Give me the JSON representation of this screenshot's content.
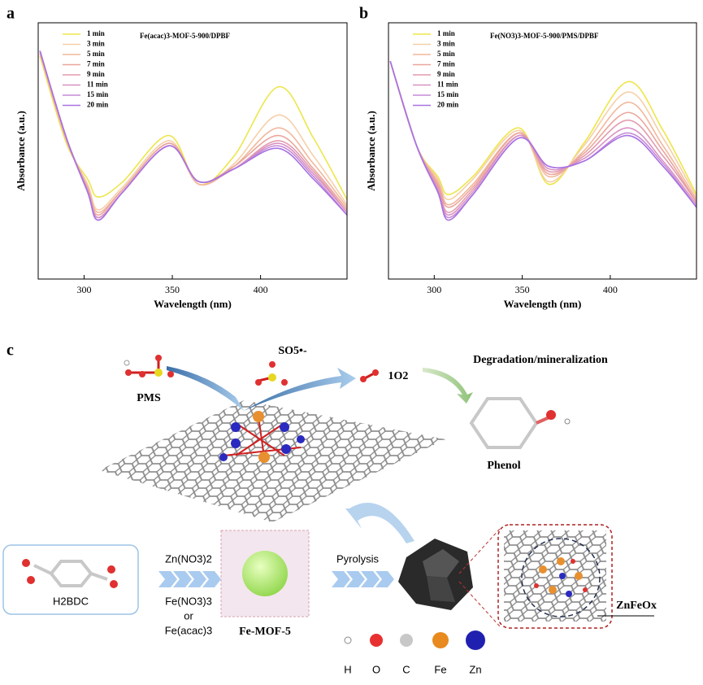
{
  "chart_data": [
    {
      "type": "line",
      "title": "Fe(acac)3-MOF-5-900/DPBF",
      "xlabel": "Wavelength (nm)",
      "ylabel": "Absorbance (a.u.)",
      "x": [
        275,
        290,
        302,
        308,
        322,
        348,
        365,
        385,
        410,
        430,
        449
      ],
      "xlim": [
        274,
        449
      ],
      "xticks": [
        300,
        350,
        400
      ],
      "ylim": [
        0,
        1
      ],
      "series": [
        {
          "name": "1 min",
          "color": "#ece64a",
          "values": [
            0.87,
            0.53,
            0.39,
            0.32,
            0.38,
            0.56,
            0.37,
            0.48,
            0.75,
            0.55,
            0.31
          ]
        },
        {
          "name": "3 min",
          "color": "#f6cfa8",
          "values": [
            0.88,
            0.54,
            0.37,
            0.27,
            0.36,
            0.54,
            0.37,
            0.45,
            0.64,
            0.48,
            0.29
          ]
        },
        {
          "name": "5 min",
          "color": "#f2b79c",
          "values": [
            0.88,
            0.54,
            0.36,
            0.26,
            0.35,
            0.53,
            0.37,
            0.44,
            0.59,
            0.45,
            0.28
          ]
        },
        {
          "name": "7 min",
          "color": "#eba69c",
          "values": [
            0.89,
            0.55,
            0.35,
            0.25,
            0.35,
            0.53,
            0.38,
            0.44,
            0.56,
            0.43,
            0.27
          ]
        },
        {
          "name": "9 min",
          "color": "#e39cae",
          "values": [
            0.89,
            0.55,
            0.35,
            0.24,
            0.34,
            0.52,
            0.38,
            0.43,
            0.54,
            0.42,
            0.26
          ]
        },
        {
          "name": "11 min",
          "color": "#d892c2",
          "values": [
            0.89,
            0.55,
            0.34,
            0.24,
            0.34,
            0.52,
            0.38,
            0.43,
            0.53,
            0.41,
            0.26
          ]
        },
        {
          "name": "15 min",
          "color": "#c68bd8",
          "values": [
            0.89,
            0.55,
            0.34,
            0.23,
            0.34,
            0.52,
            0.38,
            0.43,
            0.52,
            0.4,
            0.25
          ]
        },
        {
          "name": "20 min",
          "color": "#a872e2",
          "values": [
            0.89,
            0.55,
            0.34,
            0.23,
            0.34,
            0.52,
            0.38,
            0.43,
            0.51,
            0.39,
            0.25
          ]
        }
      ]
    },
    {
      "type": "line",
      "title": "Fe(NO3)3-MOF-5-900/PMS/DPBF",
      "xlabel": "Wavelength (nm)",
      "ylabel": "Absorbance (a.u.)",
      "x": [
        275,
        290,
        302,
        308,
        322,
        348,
        365,
        385,
        410,
        430,
        449
      ],
      "xlim": [
        274,
        449
      ],
      "xticks": [
        300,
        350,
        400
      ],
      "ylim": [
        0,
        1
      ],
      "series": [
        {
          "name": "1 min",
          "color": "#ece64a",
          "values": [
            0.85,
            0.52,
            0.4,
            0.33,
            0.4,
            0.59,
            0.37,
            0.53,
            0.77,
            0.58,
            0.33
          ]
        },
        {
          "name": "3 min",
          "color": "#f6cfa8",
          "values": [
            0.85,
            0.52,
            0.39,
            0.31,
            0.39,
            0.58,
            0.38,
            0.52,
            0.73,
            0.55,
            0.32
          ]
        },
        {
          "name": "5 min",
          "color": "#f2b79c",
          "values": [
            0.85,
            0.52,
            0.38,
            0.29,
            0.37,
            0.57,
            0.4,
            0.5,
            0.69,
            0.52,
            0.31
          ]
        },
        {
          "name": "7 min",
          "color": "#eba69c",
          "values": [
            0.85,
            0.52,
            0.37,
            0.28,
            0.36,
            0.57,
            0.41,
            0.49,
            0.65,
            0.5,
            0.3
          ]
        },
        {
          "name": "9 min",
          "color": "#e39cae",
          "values": [
            0.85,
            0.52,
            0.36,
            0.26,
            0.35,
            0.56,
            0.42,
            0.48,
            0.62,
            0.48,
            0.3
          ]
        },
        {
          "name": "11 min",
          "color": "#d892c2",
          "values": [
            0.85,
            0.52,
            0.35,
            0.25,
            0.34,
            0.56,
            0.43,
            0.47,
            0.59,
            0.46,
            0.29
          ]
        },
        {
          "name": "15 min",
          "color": "#c68bd8",
          "values": [
            0.85,
            0.52,
            0.34,
            0.24,
            0.33,
            0.55,
            0.44,
            0.46,
            0.57,
            0.45,
            0.28
          ]
        },
        {
          "name": "20 min",
          "color": "#a872e2",
          "values": [
            0.85,
            0.52,
            0.34,
            0.23,
            0.33,
            0.55,
            0.44,
            0.46,
            0.56,
            0.44,
            0.28
          ]
        }
      ]
    }
  ],
  "panel_labels": [
    "a",
    "b",
    "c"
  ],
  "diagram": {
    "so5": "SO5•-",
    "pms": "PMS",
    "singlet_oxygen": "1O2",
    "degradation": "Degradation/mineralization",
    "phenol": "Phenol",
    "h2bdc": "H2BDC",
    "reagents": [
      "Zn(NO3)2",
      "Fe(NO3)3",
      "or",
      "Fe(acac)3"
    ],
    "fe_mof": "Fe-MOF-5",
    "pyrolysis": "Pyrolysis",
    "znfeox": "ZnFeOx",
    "atoms": [
      "H",
      "O",
      "C",
      "Fe",
      "Zn"
    ]
  }
}
